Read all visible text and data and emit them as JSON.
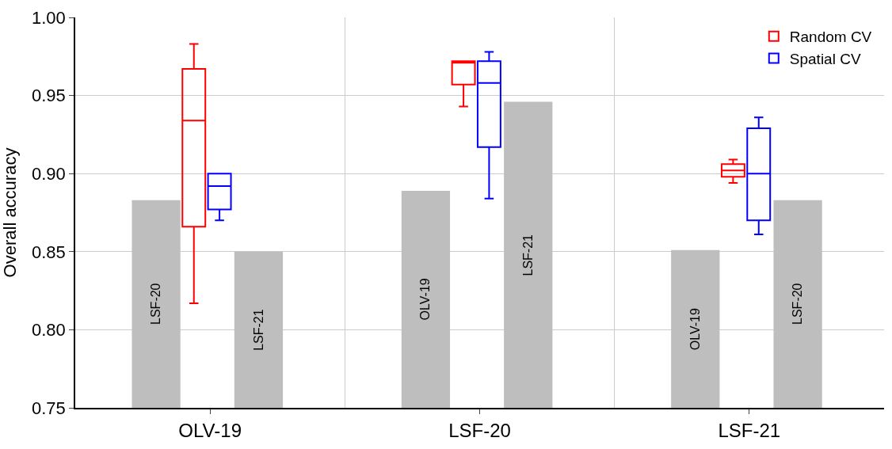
{
  "chart_data": {
    "type": "box",
    "ylabel": "Overall accuracy",
    "categories": [
      "OLV-19",
      "LSF-20",
      "LSF-21"
    ],
    "ylim": [
      0.75,
      1.0
    ],
    "yticks": [
      0.75,
      {
        "value": 0.8,
        "label": "0.80"
      },
      0.85,
      {
        "value": 0.9,
        "label": "0.90"
      },
      0.95,
      {
        "value": 1.0,
        "label": "1.00"
      }
    ],
    "grid": true,
    "legend": "top right",
    "series": [
      {
        "type": "bar",
        "color": "#bebebe",
        "values": [
          0.883,
          0.889,
          0.851
        ],
        "value_labels": [
          "LSF-20",
          "OLV-19",
          "OLV-19"
        ]
      },
      {
        "name": "Random CV",
        "color": "#ff0000",
        "boxes": [
          {
            "low": 0.817,
            "q1": 0.866,
            "median": 0.934,
            "q3": 0.967,
            "high": 0.983
          },
          {
            "low": 0.943,
            "q1": 0.957,
            "median": 0.971,
            "q3": 0.972,
            "high": 0.972
          },
          {
            "low": 0.894,
            "q1": 0.898,
            "median": 0.902,
            "q3": 0.906,
            "high": 0.909
          }
        ]
      },
      {
        "name": "Spatial CV",
        "color": "#0000ff",
        "boxes": [
          {
            "low": 0.87,
            "q1": 0.877,
            "median": 0.892,
            "q3": 0.9,
            "high": 0.9
          },
          {
            "low": 0.884,
            "q1": 0.917,
            "median": 0.958,
            "q3": 0.972,
            "high": 0.978
          },
          {
            "low": 0.861,
            "q1": 0.87,
            "median": 0.9,
            "q3": 0.929,
            "high": 0.936
          }
        ]
      },
      {
        "type": "bar",
        "color": "#bebebe",
        "values": [
          0.85,
          0.946,
          0.883
        ],
        "value_labels": [
          "LSF-21",
          "LSF-21",
          "LSF-20"
        ]
      }
    ]
  }
}
